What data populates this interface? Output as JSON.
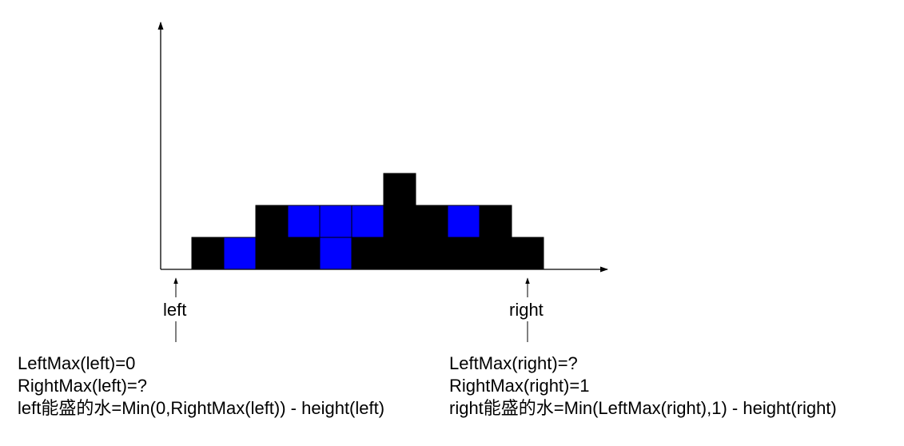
{
  "colors": {
    "bar": "#000000",
    "water": "#0000ff",
    "background": "#ffffff",
    "axis": "#000000"
  },
  "elevation": {
    "heights": [
      0,
      1,
      0,
      2,
      1,
      0,
      1,
      3,
      2,
      1,
      2,
      1
    ],
    "water": [
      0,
      0,
      1,
      0,
      1,
      2,
      1,
      0,
      0,
      1,
      0,
      0
    ]
  },
  "pointers": {
    "left": {
      "label": "left",
      "index": 0
    },
    "right": {
      "label": "right",
      "index": 11
    }
  },
  "notes": {
    "left": {
      "line1": "LeftMax(left)=0",
      "line2": "RightMax(left)=?",
      "line3": "left能盛的水=Min(0,RightMax(left)) - height(left)"
    },
    "right": {
      "line1": "LeftMax(right)=?",
      "line2": "RightMax(right)=1",
      "line3": "right能盛的水=Min(LeftMax(right),1) - height(right)"
    }
  }
}
